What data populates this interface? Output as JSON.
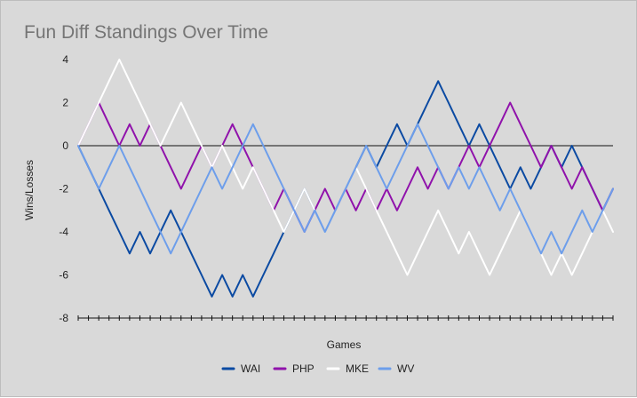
{
  "chart_data": {
    "type": "line",
    "title": "Fun Diff Standings Over Time",
    "xlabel": "Games",
    "ylabel": "Wins/Losses",
    "ylim": [
      -8,
      4
    ],
    "yticks": [
      4,
      2,
      0,
      -2,
      -4,
      -6,
      -8
    ],
    "tick_labels": [
      "4",
      "2",
      "0",
      "-2",
      "-4",
      "-6",
      "-8"
    ],
    "x": [
      0,
      1,
      2,
      3,
      4,
      5,
      6,
      7,
      8,
      9,
      10,
      11,
      12,
      13,
      14,
      15,
      16,
      17,
      18,
      19,
      20,
      21,
      22,
      23,
      24,
      25,
      26,
      27,
      28,
      29,
      30,
      31,
      32,
      33,
      34,
      35,
      36,
      37,
      38,
      39,
      40,
      41,
      42,
      43,
      44,
      45,
      46,
      47,
      48,
      49,
      50,
      51,
      52
    ],
    "legend_position": "bottom",
    "series": [
      {
        "name": "WAI",
        "color": "#0b4aa2",
        "values": [
          0,
          -1,
          -2,
          -3,
          -4,
          -5,
          -4,
          -5,
          -4,
          -3,
          -4,
          -5,
          -6,
          -7,
          -6,
          -7,
          -6,
          -7,
          -6,
          -5,
          -4,
          -3,
          -2,
          -3,
          -4,
          -3,
          -2,
          -1,
          0,
          -1,
          0,
          1,
          0,
          1,
          2,
          3,
          2,
          1,
          0,
          1,
          0,
          -1,
          -2,
          -1,
          -2,
          -1,
          0,
          -1,
          0,
          -1,
          -2,
          -3,
          -2
        ]
      },
      {
        "name": "PHP",
        "color": "#9012ab",
        "values": [
          0,
          1,
          2,
          1,
          0,
          1,
          0,
          1,
          0,
          -1,
          -2,
          -1,
          0,
          -1,
          0,
          1,
          0,
          -1,
          -2,
          -3,
          -2,
          -3,
          -4,
          -3,
          -2,
          -3,
          -2,
          -3,
          -2,
          -3,
          -2,
          -3,
          -2,
          -1,
          -2,
          -1,
          -2,
          -1,
          0,
          -1,
          0,
          1,
          2,
          1,
          0,
          -1,
          0,
          -1,
          -2,
          -1,
          -2,
          -3,
          -2
        ]
      },
      {
        "name": "MKE",
        "color": "#ffffff",
        "values": [
          0,
          1,
          2,
          3,
          4,
          3,
          2,
          1,
          0,
          1,
          2,
          1,
          0,
          -1,
          0,
          -1,
          -2,
          -1,
          -2,
          -3,
          -4,
          -3,
          -2,
          -3,
          -4,
          -3,
          -2,
          -1,
          -2,
          -3,
          -4,
          -5,
          -6,
          -5,
          -4,
          -3,
          -4,
          -5,
          -4,
          -5,
          -6,
          -5,
          -4,
          -3,
          -4,
          -5,
          -6,
          -5,
          -6,
          -5,
          -4,
          -3,
          -4
        ]
      },
      {
        "name": "WV",
        "color": "#6d9eeb",
        "values": [
          0,
          -1,
          -2,
          -1,
          0,
          -1,
          -2,
          -3,
          -4,
          -5,
          -4,
          -3,
          -2,
          -1,
          -2,
          -1,
          0,
          1,
          0,
          -1,
          -2,
          -3,
          -4,
          -3,
          -4,
          -3,
          -2,
          -1,
          0,
          -1,
          -2,
          -1,
          0,
          1,
          0,
          -1,
          -2,
          -1,
          -2,
          -1,
          -2,
          -3,
          -2,
          -3,
          -4,
          -5,
          -4,
          -5,
          -4,
          -3,
          -4,
          -3,
          -2
        ]
      }
    ]
  }
}
